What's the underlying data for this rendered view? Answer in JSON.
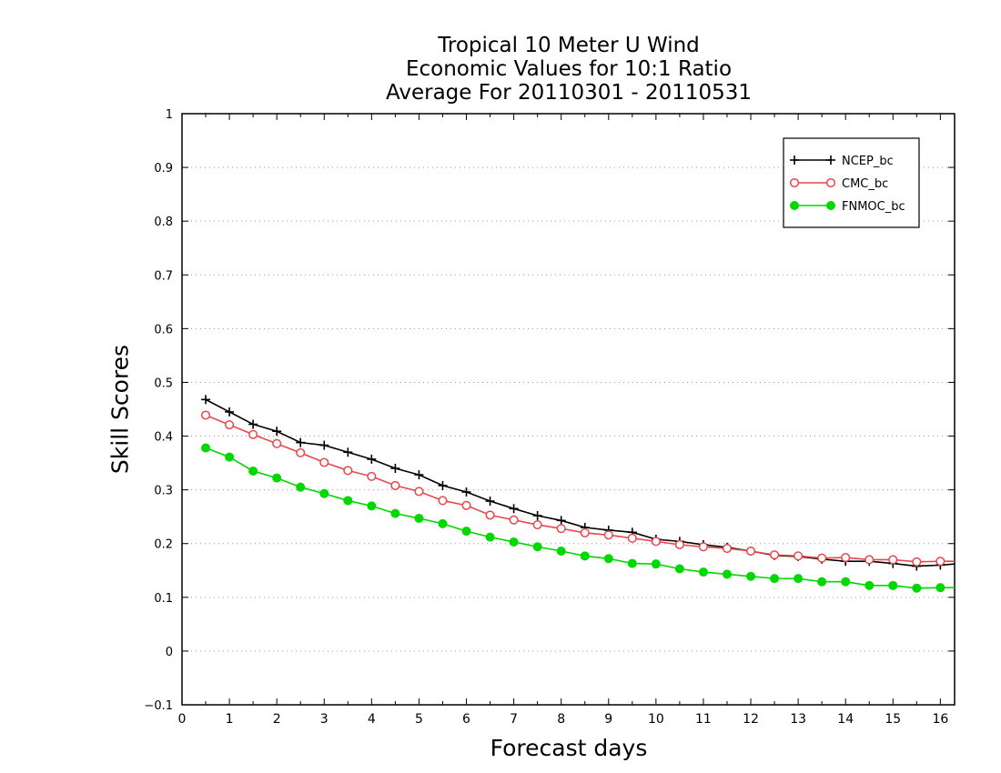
{
  "chart_data": {
    "type": "line",
    "title_lines": [
      "Tropical 10 Meter U Wind",
      "Economic Values for 10:1 Ratio",
      "Average For 20110301 - 20110531"
    ],
    "xlabel": "Forecast days",
    "ylabel": "Skill Scores",
    "xlim": [
      0,
      16.3
    ],
    "ylim": [
      -0.1,
      1
    ],
    "xticks": [
      "0",
      "1",
      "2",
      "3",
      "4",
      "5",
      "6",
      "7",
      "8",
      "9",
      "10",
      "11",
      "12",
      "13",
      "14",
      "15",
      "16"
    ],
    "yticks": [
      "−0.1",
      "0",
      "0.1",
      "0.2",
      "0.3",
      "0.4",
      "0.5",
      "0.6",
      "0.7",
      "0.8",
      "0.9",
      "1"
    ],
    "grid": "horizontal dotted",
    "legend_position": "top-right",
    "x": [
      0.5,
      1,
      1.5,
      2,
      2.5,
      3,
      3.5,
      4,
      4.5,
      5,
      5.5,
      6,
      6.5,
      7,
      7.5,
      8,
      8.5,
      9,
      9.5,
      10,
      10.5,
      11,
      11.5,
      12,
      12.5,
      13,
      13.5,
      14,
      14.5,
      15,
      15.5,
      16,
      16.3
    ],
    "series": [
      {
        "name": "NCEP_bc",
        "color": "#000000",
        "marker": "plus",
        "values": [
          0.468,
          0.445,
          0.422,
          0.409,
          0.388,
          0.383,
          0.37,
          0.357,
          0.34,
          0.328,
          0.308,
          0.296,
          0.279,
          0.265,
          0.252,
          0.243,
          0.23,
          0.225,
          0.221,
          0.208,
          0.204,
          0.198,
          0.193,
          0.186,
          0.178,
          0.176,
          0.171,
          0.167,
          0.167,
          0.163,
          0.158,
          0.16,
          0.162
        ]
      },
      {
        "name": "CMC_bc",
        "color": "#e8474c",
        "marker": "open-circle",
        "values": [
          0.439,
          0.421,
          0.403,
          0.386,
          0.369,
          0.351,
          0.336,
          0.325,
          0.308,
          0.297,
          0.28,
          0.271,
          0.253,
          0.244,
          0.235,
          0.228,
          0.22,
          0.216,
          0.21,
          0.204,
          0.198,
          0.194,
          0.191,
          0.186,
          0.179,
          0.177,
          0.173,
          0.174,
          0.17,
          0.17,
          0.166,
          0.167,
          0.167
        ]
      },
      {
        "name": "FNMOC_bc",
        "color": "#00d800",
        "marker": "filled-circle",
        "values": [
          0.378,
          0.361,
          0.335,
          0.322,
          0.305,
          0.293,
          0.28,
          0.27,
          0.256,
          0.247,
          0.237,
          0.223,
          0.212,
          0.203,
          0.194,
          0.186,
          0.177,
          0.172,
          0.163,
          0.162,
          0.153,
          0.147,
          0.143,
          0.139,
          0.135,
          0.135,
          0.129,
          0.129,
          0.122,
          0.122,
          0.117,
          0.118,
          0.118
        ]
      }
    ]
  }
}
